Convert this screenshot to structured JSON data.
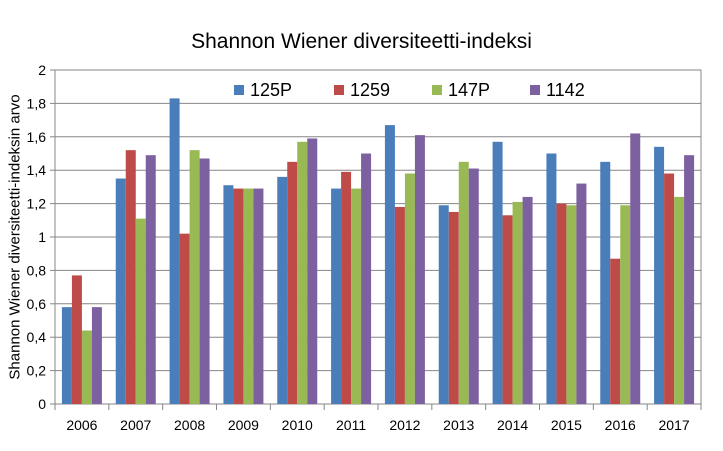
{
  "chart_data": {
    "type": "bar",
    "title": "Shannon Wiener diversiteetti-indeksi",
    "ylabel": "Shannon Wiener diversiteetti-indeksin arvo",
    "xlabel": "",
    "ylim": [
      0,
      2
    ],
    "yticks": [
      "0",
      "0,2",
      "0,4",
      "0,6",
      "0,8",
      "1",
      "1,2",
      "1,4",
      "1,6",
      "1,8",
      "2"
    ],
    "grid": true,
    "legend_position": "top",
    "categories": [
      "2006",
      "2007",
      "2008",
      "2009",
      "2010",
      "2011",
      "2012",
      "2013",
      "2014",
      "2015",
      "2016",
      "2017"
    ],
    "series": [
      {
        "name": "125P",
        "color": "#4a7ebb",
        "values": [
          0.58,
          1.35,
          1.83,
          1.31,
          1.36,
          1.29,
          1.67,
          1.19,
          1.57,
          1.5,
          1.45,
          1.54
        ]
      },
      {
        "name": "1259",
        "color": "#be4b48",
        "values": [
          0.77,
          1.52,
          1.02,
          1.29,
          1.45,
          1.39,
          1.18,
          1.15,
          1.13,
          1.2,
          0.87,
          1.38
        ]
      },
      {
        "name": "147P",
        "color": "#98b954",
        "values": [
          0.44,
          1.11,
          1.52,
          1.29,
          1.57,
          1.29,
          1.38,
          1.45,
          1.21,
          1.19,
          1.19,
          1.24
        ]
      },
      {
        "name": "1142",
        "color": "#7d60a0",
        "values": [
          0.58,
          1.49,
          1.47,
          1.29,
          1.59,
          1.5,
          1.61,
          1.41,
          1.24,
          1.32,
          1.62,
          1.49
        ]
      }
    ]
  }
}
